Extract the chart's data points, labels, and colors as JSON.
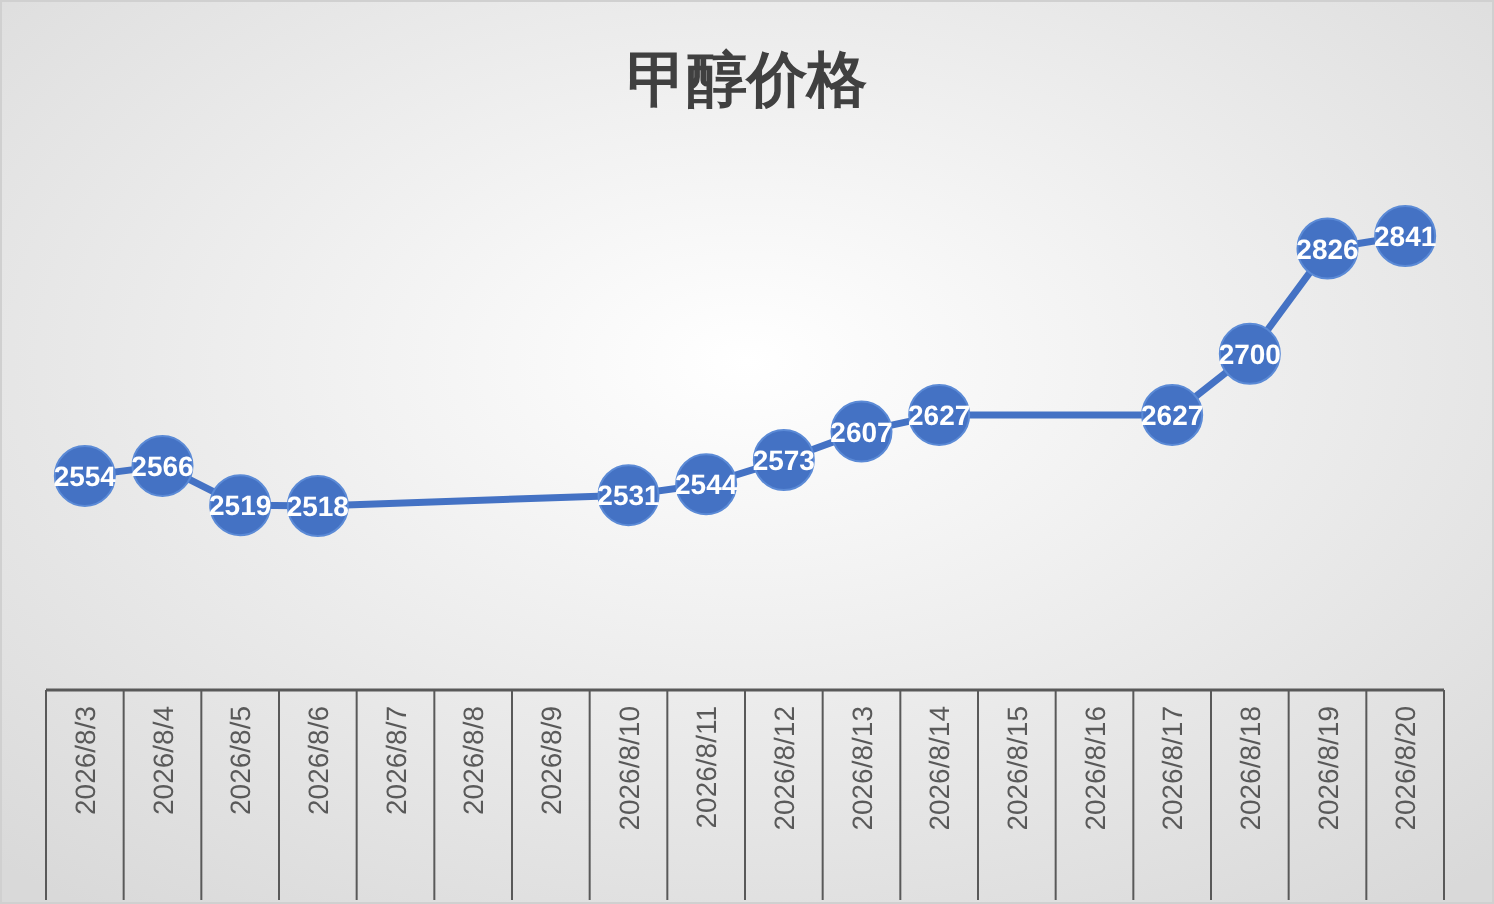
{
  "chart_data": {
    "type": "line",
    "title": "甲醇价格",
    "color": "#4472c4",
    "marker": "circle",
    "line_style": "solid",
    "data_labels": true,
    "tick_labels": "x",
    "x": [
      "2026-08-03",
      "2026-08-04",
      "2026-08-05",
      "2026-08-06",
      "2026-08-10",
      "2026-08-11",
      "2026-08-12",
      "2026-08-13",
      "2026-08-14",
      "2026-08-17",
      "2026-08-18",
      "2026-08-19",
      "2026-08-20"
    ],
    "values": [
      2554,
      2566,
      2519,
      2518,
      2531,
      2544,
      2573,
      2607,
      2627,
      2627,
      2700,
      2826,
      2841
    ],
    "xlim": [
      "2026-08-02T12:00",
      "2026-08-20T12:00"
    ],
    "xticks": [
      {
        "value": "2026-08-03",
        "label": "2026/8/3"
      },
      {
        "value": "2026-08-04",
        "label": "2026/8/4"
      },
      {
        "value": "2026-08-05",
        "label": "2026/8/5"
      },
      {
        "value": "2026-08-06",
        "label": "2026/8/6"
      },
      {
        "value": "2026-08-07",
        "label": "2026/8/7"
      },
      {
        "value": "2026-08-08",
        "label": "2026/8/8"
      },
      {
        "value": "2026-08-09",
        "label": "2026/8/9"
      },
      {
        "value": "2026-08-10",
        "label": "2026/8/10"
      },
      {
        "value": "2026-08-11",
        "label": "2026/8/11"
      },
      {
        "value": "2026-08-12",
        "label": "2026/8/12"
      },
      {
        "value": "2026-08-13",
        "label": "2026/8/13"
      },
      {
        "value": "2026-08-14",
        "label": "2026/8/14"
      },
      {
        "value": "2026-08-15",
        "label": "2026/8/15"
      },
      {
        "value": "2026-08-16",
        "label": "2026/8/16"
      },
      {
        "value": "2026-08-17",
        "label": "2026/8/17"
      },
      {
        "value": "2026-08-18",
        "label": "2026/8/18"
      },
      {
        "value": "2026-08-19",
        "label": "2026/8/19"
      },
      {
        "value": "2026-08-20",
        "label": "2026/8/20"
      }
    ]
  }
}
